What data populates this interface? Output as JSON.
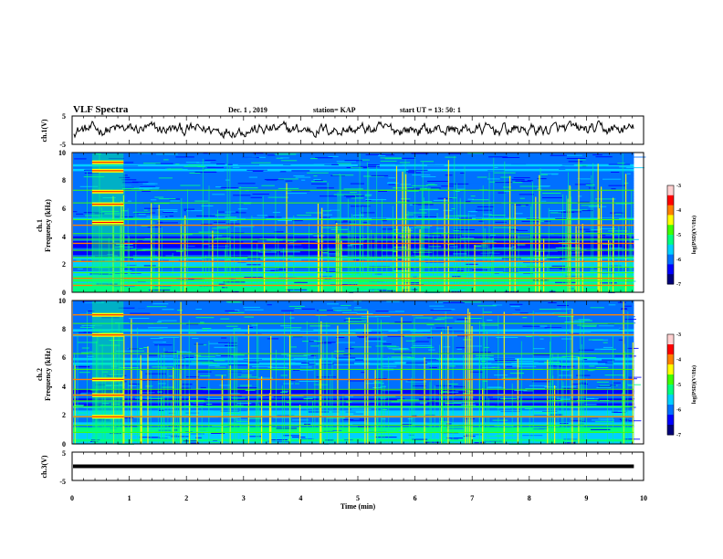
{
  "chart_data": {
    "type": "heatmap",
    "header": {
      "title": "VLF Spectra",
      "date": "Dec. 1 , 2019",
      "station": "station= KAP",
      "start": "start UT =  13: 50: 1"
    },
    "xlabel": "Time (min)",
    "xlim": [
      0,
      10
    ],
    "xticks": [
      "0",
      "1",
      "2",
      "3",
      "4",
      "5",
      "6",
      "7",
      "8",
      "9",
      "10"
    ],
    "data_end_min": 9.83,
    "panels": [
      {
        "id": "ch1_waveform",
        "type": "line",
        "ylabel": "ch.1(V)",
        "ylim": [
          -5,
          5
        ],
        "yticks": [
          "5",
          "-5"
        ],
        "series": [
          {
            "kind": "noise-waveform",
            "mean": 0.2,
            "amplitude": 2.5
          }
        ]
      },
      {
        "id": "ch1_spectrogram",
        "type": "heatmap",
        "ylabel": "ch.1\nFrequency (kHz)",
        "ylim": [
          0,
          10
        ],
        "yticks": [
          "0",
          "2",
          "4",
          "6",
          "8",
          "10"
        ],
        "colorbar": {
          "label": "log(PSD)(V²/Hz)",
          "range": [
            -7,
            -3
          ],
          "ticks": [
            "-3",
            "-4",
            "-5",
            "-6",
            "-7"
          ]
        },
        "strong_lines_khz": [
          3.5,
          2.2,
          1.0,
          4.8,
          0.5
        ],
        "moderate_lines_khz": [
          0.8,
          1.4,
          1.8,
          2.5,
          3.0,
          3.8,
          4.2,
          5.2,
          6.4,
          7.3
        ],
        "burst_interval_min": [
          0.35,
          0.9
        ],
        "burst_lines_khz": [
          5.0,
          6.3,
          7.2,
          8.7,
          9.3
        ]
      },
      {
        "id": "ch2_spectrogram",
        "type": "heatmap",
        "ylabel": "ch.2\nFrequency (kHz)",
        "ylim": [
          0,
          10
        ],
        "yticks": [
          "0",
          "2",
          "4",
          "6",
          "8",
          "10"
        ],
        "colorbar": {
          "label": "log(PSD)(V²/Hz)",
          "range": [
            -7,
            -3
          ],
          "ticks": [
            "-3",
            "-4",
            "-5",
            "-6",
            "-7"
          ]
        },
        "strong_lines_khz": [
          1.9,
          3.4,
          4.5,
          7.6,
          9.0
        ],
        "moderate_lines_khz": [
          0.8,
          1.3,
          2.6,
          3.0,
          3.8,
          5.2,
          6.3,
          8.4
        ],
        "burst_interval_min": [
          0.35,
          0.9
        ],
        "burst_lines_khz": [
          1.9,
          3.4,
          4.5,
          7.6,
          9.0
        ]
      },
      {
        "id": "ch3_waveform",
        "type": "line",
        "ylabel": "ch.3(V)",
        "ylim": [
          -5,
          5
        ],
        "yticks": [
          "5",
          "-5"
        ],
        "series": [
          {
            "kind": "flat",
            "mean": 0.0
          }
        ]
      }
    ],
    "colors": {
      "colormap": [
        "#00007a",
        "#0000ff",
        "#0070ff",
        "#00d0ff",
        "#00ff80",
        "#40ff00",
        "#ffff00",
        "#ff8000",
        "#ff0000",
        "#ffd0d0"
      ],
      "background": "#ffffff",
      "axis": "#000000"
    }
  }
}
